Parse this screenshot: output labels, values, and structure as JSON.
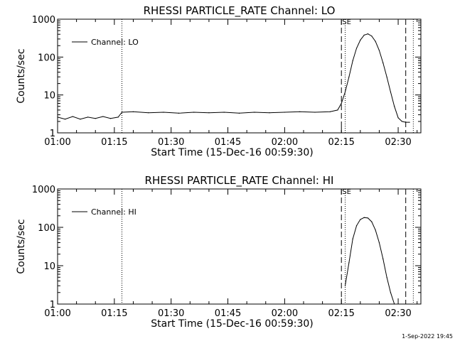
{
  "footer": {
    "timestamp": "1-Sep-2022 19:45"
  },
  "chart_data": [
    {
      "type": "line",
      "title": "RHESSI PARTICLE_RATE Channel: LO",
      "xlabel": "Start Time (15-Dec-16 00:59:30)",
      "ylabel": "Counts/sec",
      "y_scale": "log",
      "xlim": [
        "01:00",
        "02:36"
      ],
      "ylim": [
        1,
        1000
      ],
      "x_ticks": [
        "01:00",
        "01:15",
        "01:30",
        "01:45",
        "02:00",
        "02:15",
        "02:30"
      ],
      "y_ticks": [
        "1",
        "10",
        "100",
        "1000"
      ],
      "legend": {
        "entries": [
          "Channel: LO"
        ],
        "placement": "top-left"
      },
      "markers": {
        "dotted": [
          "01:17",
          "02:16",
          "02:34"
        ],
        "dashed": [
          "02:15",
          "02:32"
        ],
        "labels": [
          "SE"
        ]
      },
      "series": [
        {
          "name": "Channel: LO",
          "x": [
            "01:00",
            "01:02",
            "01:04",
            "01:06",
            "01:08",
            "01:10",
            "01:12",
            "01:14",
            "01:16",
            "01:17",
            "01:20",
            "01:24",
            "01:28",
            "01:32",
            "01:36",
            "01:40",
            "01:44",
            "01:48",
            "01:52",
            "01:56",
            "02:00",
            "02:04",
            "02:08",
            "02:12",
            "02:14",
            "02:15",
            "02:16",
            "02:17",
            "02:18",
            "02:19",
            "02:20",
            "02:21",
            "02:22",
            "02:23",
            "02:24",
            "02:25",
            "02:26",
            "02:27",
            "02:28",
            "02:29",
            "02:30",
            "02:31",
            "02:32",
            "02:33"
          ],
          "y": [
            2.6,
            2.3,
            2.7,
            2.3,
            2.6,
            2.4,
            2.7,
            2.4,
            2.6,
            3.5,
            3.6,
            3.4,
            3.5,
            3.3,
            3.5,
            3.4,
            3.5,
            3.3,
            3.5,
            3.4,
            3.5,
            3.6,
            3.5,
            3.6,
            4.0,
            6,
            12,
            30,
            80,
            170,
            280,
            380,
            410,
            360,
            260,
            150,
            70,
            30,
            12,
            5,
            2.5,
            2.0,
            1.9,
            1.9
          ]
        }
      ]
    },
    {
      "type": "line",
      "title": "RHESSI PARTICLE_RATE Channel: HI",
      "xlabel": "Start Time (15-Dec-16 00:59:30)",
      "ylabel": "Counts/sec",
      "y_scale": "log",
      "xlim": [
        "01:00",
        "02:36"
      ],
      "ylim": [
        1,
        1000
      ],
      "x_ticks": [
        "01:00",
        "01:15",
        "01:30",
        "01:45",
        "02:00",
        "02:15",
        "02:30"
      ],
      "y_ticks": [
        "1",
        "10",
        "100",
        "1000"
      ],
      "legend": {
        "entries": [
          "Channel: HI"
        ],
        "placement": "top-left"
      },
      "markers": {
        "dotted": [
          "01:17",
          "02:16",
          "02:34"
        ],
        "dashed": [
          "02:15",
          "02:32"
        ],
        "labels": [
          "SE"
        ]
      },
      "series": [
        {
          "name": "Channel: HI",
          "x": [
            "02:16",
            "02:17",
            "02:18",
            "02:19",
            "02:20",
            "02:21",
            "02:22",
            "02:23",
            "02:24",
            "02:25",
            "02:26",
            "02:27",
            "02:28",
            "02:29"
          ],
          "y": [
            3,
            12,
            50,
            110,
            160,
            180,
            175,
            140,
            85,
            40,
            15,
            5,
            2,
            1
          ]
        }
      ]
    }
  ]
}
